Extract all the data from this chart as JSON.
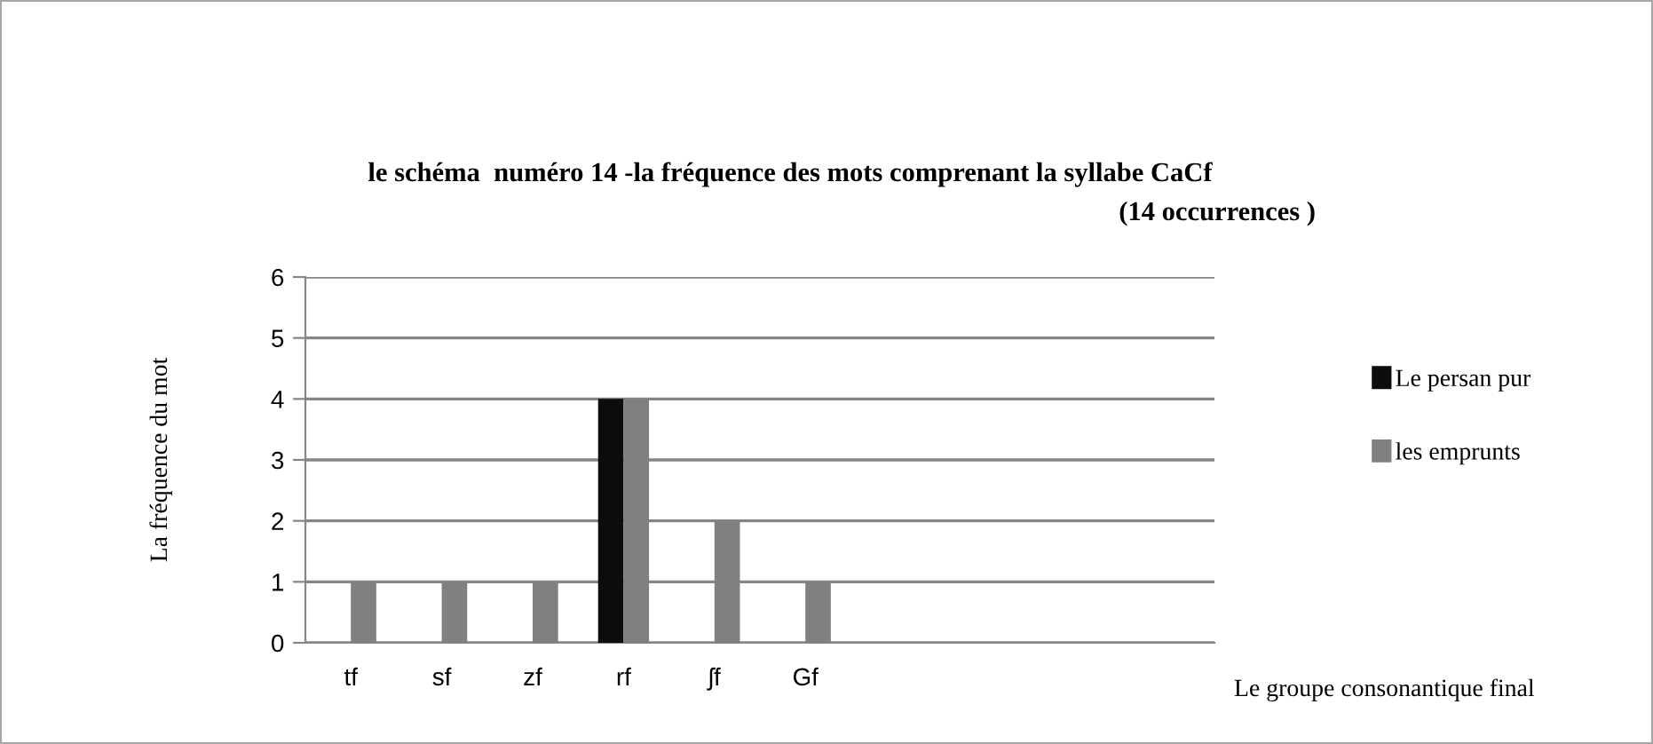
{
  "chart_data": {
    "type": "bar",
    "title": "le schéma  numéro 14 -la fréquence des mots comprenant la syllabe CaCf",
    "subtitle": "(14 occurrences )",
    "xlabel": "Le groupe consonantique final",
    "ylabel": "La fréquence du mot",
    "categories": [
      "tf",
      "sf",
      "zf",
      "rf",
      "ʃf",
      "Gf",
      null,
      null,
      null,
      null
    ],
    "series": [
      {
        "name": "Le persan pur",
        "color": "#0d0d0d",
        "values": [
          0,
          0,
          0,
          4,
          0,
          0,
          null,
          null,
          null,
          null
        ]
      },
      {
        "name": "les emprunts",
        "color": "#808080",
        "values": [
          1,
          1,
          1,
          4,
          2,
          1,
          null,
          null,
          null,
          null
        ]
      }
    ],
    "ylim": [
      0,
      6
    ],
    "yticks": [
      0,
      1,
      2,
      3,
      4,
      5,
      6
    ],
    "grid": "y",
    "legend": "right"
  }
}
